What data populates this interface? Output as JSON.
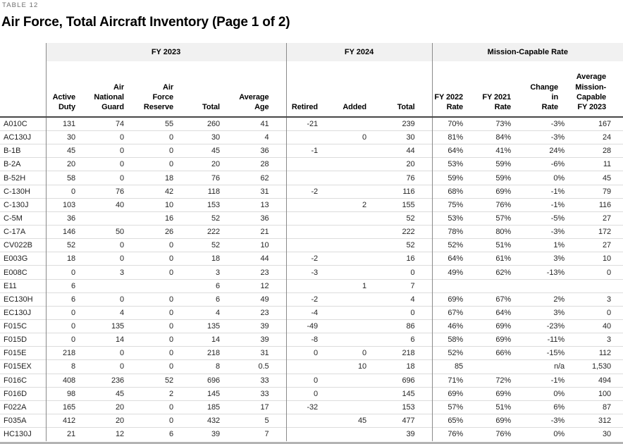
{
  "eyebrow": "TABLE 12",
  "title": "Air Force, Total Aircraft Inventory (Page 1 of 2)",
  "table": {
    "groups": [
      {
        "id": "fy2023",
        "label": "FY 2023"
      },
      {
        "id": "fy2024",
        "label": "FY 2024"
      },
      {
        "id": "mission-capable-rate",
        "label": "Mission-Capable Rate"
      }
    ],
    "columns": [
      {
        "id": "active-duty",
        "label": "Active\nDuty"
      },
      {
        "id": "air-national-guard",
        "label": "Air\nNational\nGuard"
      },
      {
        "id": "air-force-reserve",
        "label": "Air Force\nReserve"
      },
      {
        "id": "fy2023-total",
        "label": "Total"
      },
      {
        "id": "average-age",
        "label": "Average\nAge"
      },
      {
        "id": "retired",
        "label": "Retired"
      },
      {
        "id": "added",
        "label": "Added"
      },
      {
        "id": "fy2024-total",
        "label": "Total"
      },
      {
        "id": "fy2022-rate",
        "label": "FY 2022\nRate"
      },
      {
        "id": "fy2021-rate",
        "label": "FY 2021\nRate"
      },
      {
        "id": "change-in-rate",
        "label": "Change in\nRate"
      },
      {
        "id": "avg-mission-capable-fy2023",
        "label": "Average\nMission-\nCapable\nFY 2023"
      }
    ],
    "rows": [
      {
        "label": "A010C",
        "cells": [
          "131",
          "74",
          "55",
          "260",
          "41",
          "-21",
          "",
          "239",
          "70%",
          "73%",
          "-3%",
          "167"
        ]
      },
      {
        "label": "AC130J",
        "cells": [
          "30",
          "0",
          "0",
          "30",
          "4",
          "",
          "0",
          "30",
          "81%",
          "84%",
          "-3%",
          "24"
        ]
      },
      {
        "label": "B-1B",
        "cells": [
          "45",
          "0",
          "0",
          "45",
          "36",
          "-1",
          "",
          "44",
          "64%",
          "41%",
          "24%",
          "28"
        ]
      },
      {
        "label": "B-2A",
        "cells": [
          "20",
          "0",
          "0",
          "20",
          "28",
          "",
          "",
          "20",
          "53%",
          "59%",
          "-6%",
          "11"
        ]
      },
      {
        "label": "B-52H",
        "cells": [
          "58",
          "0",
          "18",
          "76",
          "62",
          "",
          "",
          "76",
          "59%",
          "59%",
          "0%",
          "45"
        ]
      },
      {
        "label": "C-130H",
        "cells": [
          "0",
          "76",
          "42",
          "118",
          "31",
          "-2",
          "",
          "116",
          "68%",
          "69%",
          "-1%",
          "79"
        ]
      },
      {
        "label": "C-130J",
        "cells": [
          "103",
          "40",
          "10",
          "153",
          "13",
          "",
          "2",
          "155",
          "75%",
          "76%",
          "-1%",
          "116"
        ]
      },
      {
        "label": "C-5M",
        "cells": [
          "36",
          "",
          "16",
          "52",
          "36",
          "",
          "",
          "52",
          "53%",
          "57%",
          "-5%",
          "27"
        ]
      },
      {
        "label": "C-17A",
        "cells": [
          "146",
          "50",
          "26",
          "222",
          "21",
          "",
          "",
          "222",
          "78%",
          "80%",
          "-3%",
          "172"
        ]
      },
      {
        "label": "CV022B",
        "cells": [
          "52",
          "0",
          "0",
          "52",
          "10",
          "",
          "",
          "52",
          "52%",
          "51%",
          "1%",
          "27"
        ]
      },
      {
        "label": "E003G",
        "cells": [
          "18",
          "0",
          "0",
          "18",
          "44",
          "-2",
          "",
          "16",
          "64%",
          "61%",
          "3%",
          "10"
        ]
      },
      {
        "label": "E008C",
        "cells": [
          "0",
          "3",
          "0",
          "3",
          "23",
          "-3",
          "",
          "0",
          "49%",
          "62%",
          "-13%",
          "0"
        ]
      },
      {
        "label": "E11",
        "cells": [
          "6",
          "",
          "",
          "6",
          "12",
          "",
          "1",
          "7",
          "",
          "",
          "",
          ""
        ]
      },
      {
        "label": "EC130H",
        "cells": [
          "6",
          "0",
          "0",
          "6",
          "49",
          "-2",
          "",
          "4",
          "69%",
          "67%",
          "2%",
          "3"
        ]
      },
      {
        "label": "EC130J",
        "cells": [
          "0",
          "4",
          "0",
          "4",
          "23",
          "-4",
          "",
          "0",
          "67%",
          "64%",
          "3%",
          "0"
        ]
      },
      {
        "label": "F015C",
        "cells": [
          "0",
          "135",
          "0",
          "135",
          "39",
          "-49",
          "",
          "86",
          "46%",
          "69%",
          "-23%",
          "40"
        ]
      },
      {
        "label": "F015D",
        "cells": [
          "0",
          "14",
          "0",
          "14",
          "39",
          "-8",
          "",
          "6",
          "58%",
          "69%",
          "-11%",
          "3"
        ]
      },
      {
        "label": "F015E",
        "cells": [
          "218",
          "0",
          "0",
          "218",
          "31",
          "0",
          "0",
          "218",
          "52%",
          "66%",
          "-15%",
          "112"
        ]
      },
      {
        "label": "F015EX",
        "cells": [
          "8",
          "0",
          "0",
          "8",
          "0.5",
          "",
          "10",
          "18",
          "85",
          "",
          "n/a",
          "1,530"
        ]
      },
      {
        "label": "F016C",
        "cells": [
          "408",
          "236",
          "52",
          "696",
          "33",
          "0",
          "",
          "696",
          "71%",
          "72%",
          "-1%",
          "494"
        ]
      },
      {
        "label": "F016D",
        "cells": [
          "98",
          "45",
          "2",
          "145",
          "33",
          "0",
          "",
          "145",
          "69%",
          "69%",
          "0%",
          "100"
        ]
      },
      {
        "label": "F022A",
        "cells": [
          "165",
          "20",
          "0",
          "185",
          "17",
          "-32",
          "",
          "153",
          "57%",
          "51%",
          "6%",
          "87"
        ]
      },
      {
        "label": "F035A",
        "cells": [
          "412",
          "20",
          "0",
          "432",
          "5",
          "",
          "45",
          "477",
          "65%",
          "69%",
          "-3%",
          "312"
        ]
      },
      {
        "label": "HC130J",
        "cells": [
          "21",
          "12",
          "6",
          "39",
          "7",
          "",
          "",
          "39",
          "76%",
          "76%",
          "0%",
          "30"
        ]
      }
    ]
  }
}
